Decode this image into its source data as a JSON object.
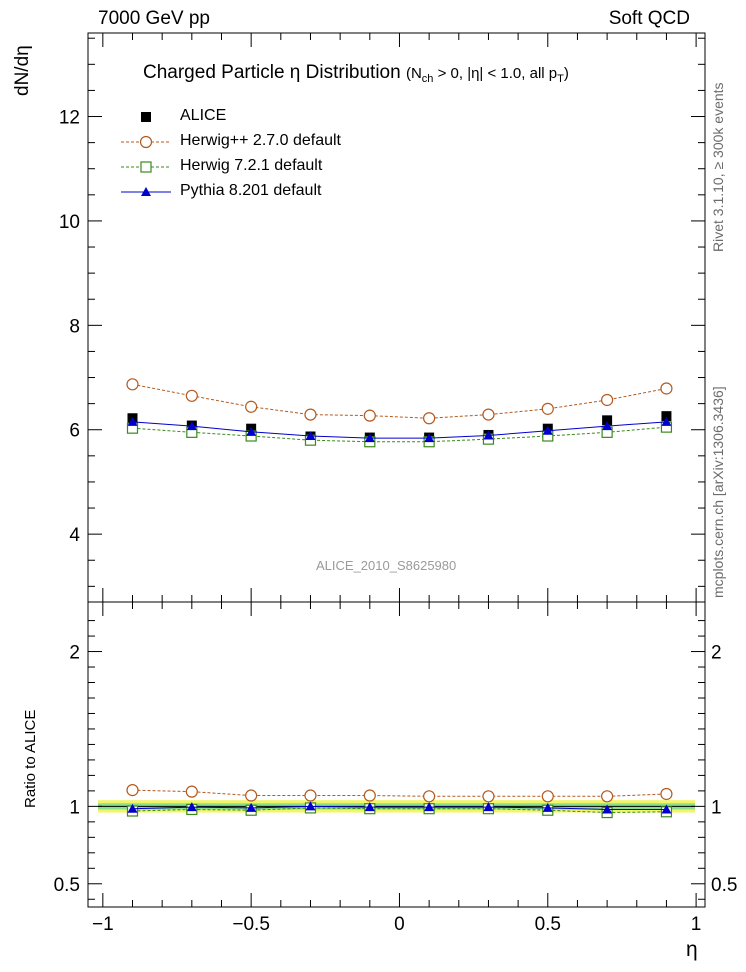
{
  "header": {
    "left": "7000 GeV pp",
    "right": "Soft QCD"
  },
  "title": {
    "main": "Charged Particle  η Distribution",
    "condition": "(N",
    "condition_sub": "ch",
    "condition_mid": " > 0, |η| < 1.0, all p",
    "condition_sub2": "T",
    "condition_end": ")"
  },
  "watermark": "ALICE_2010_S8625980",
  "side_labels": {
    "rivet": "Rivet 3.1.10, ≥ 300k events",
    "mcplots": "mcplots.cern.ch [arXiv:1306.3436]"
  },
  "axes": {
    "top_ylabel": "dN/dη",
    "bottom_ylabel": "Ratio to ALICE",
    "xlabel": "η"
  },
  "legend": [
    {
      "label": "ALICE",
      "marker": "square-filled",
      "color": "#000000"
    },
    {
      "label": "Herwig++ 2.7.0 default",
      "marker": "circle-open",
      "color": "#b35a1f"
    },
    {
      "label": "Herwig 7.2.1 default",
      "marker": "square-open",
      "color": "#3a8a1a"
    },
    {
      "label": "Pythia 8.201 default",
      "marker": "triangle-filled",
      "color": "#0000cc"
    }
  ],
  "chart_data": [
    {
      "type": "line",
      "panel": "main",
      "x": [
        -0.9,
        -0.7,
        -0.5,
        -0.3,
        -0.1,
        0.1,
        0.3,
        0.5,
        0.7,
        0.9
      ],
      "xlim": [
        -1.05,
        1.03
      ],
      "ylim": [
        2.7,
        13.6
      ],
      "yticks_major": [
        4,
        6,
        8,
        10,
        12
      ],
      "xticks_major": [
        -1,
        -0.5,
        0,
        0.5,
        1
      ],
      "xtick_labels": [
        "−1",
        "−0.5",
        "0",
        "0.5",
        "1"
      ],
      "series": [
        {
          "name": "ALICE",
          "values": [
            6.22,
            6.08,
            6.02,
            5.87,
            5.85,
            5.85,
            5.9,
            6.02,
            6.18,
            6.26
          ]
        },
        {
          "name": "Herwig++ 2.7.0 default",
          "values": [
            6.87,
            6.65,
            6.44,
            6.29,
            6.27,
            6.22,
            6.29,
            6.4,
            6.57,
            6.79
          ]
        },
        {
          "name": "Herwig 7.2.1 default",
          "values": [
            6.03,
            5.95,
            5.88,
            5.8,
            5.77,
            5.77,
            5.82,
            5.88,
            5.95,
            6.05
          ]
        },
        {
          "name": "Pythia 8.201 default",
          "values": [
            6.15,
            6.07,
            5.96,
            5.88,
            5.84,
            5.84,
            5.89,
            5.98,
            6.07,
            6.15
          ]
        }
      ]
    },
    {
      "type": "line",
      "panel": "ratio",
      "x": [
        -0.9,
        -0.7,
        -0.5,
        -0.3,
        -0.1,
        0.1,
        0.3,
        0.5,
        0.7,
        0.9
      ],
      "xlim": [
        -1.05,
        1.03
      ],
      "ylim": [
        0.35,
        2.32
      ],
      "yticks_major": [
        0.5,
        1,
        2
      ],
      "ytick_labels": [
        "0.5",
        "1",
        "2"
      ],
      "band": {
        "inner": 0.02,
        "outer": 0.04
      },
      "series": [
        {
          "name": "Herwig++ 2.7.0 default",
          "values": [
            1.105,
            1.095,
            1.07,
            1.07,
            1.07,
            1.065,
            1.065,
            1.065,
            1.065,
            1.08
          ]
        },
        {
          "name": "Herwig 7.2.1 default",
          "values": [
            0.97,
            0.98,
            0.975,
            0.99,
            0.985,
            0.985,
            0.985,
            0.975,
            0.96,
            0.965
          ]
        },
        {
          "name": "Pythia 8.201 default",
          "values": [
            0.985,
            0.995,
            0.99,
            1.0,
            0.995,
            0.995,
            0.995,
            0.99,
            0.98,
            0.98
          ]
        }
      ]
    }
  ]
}
